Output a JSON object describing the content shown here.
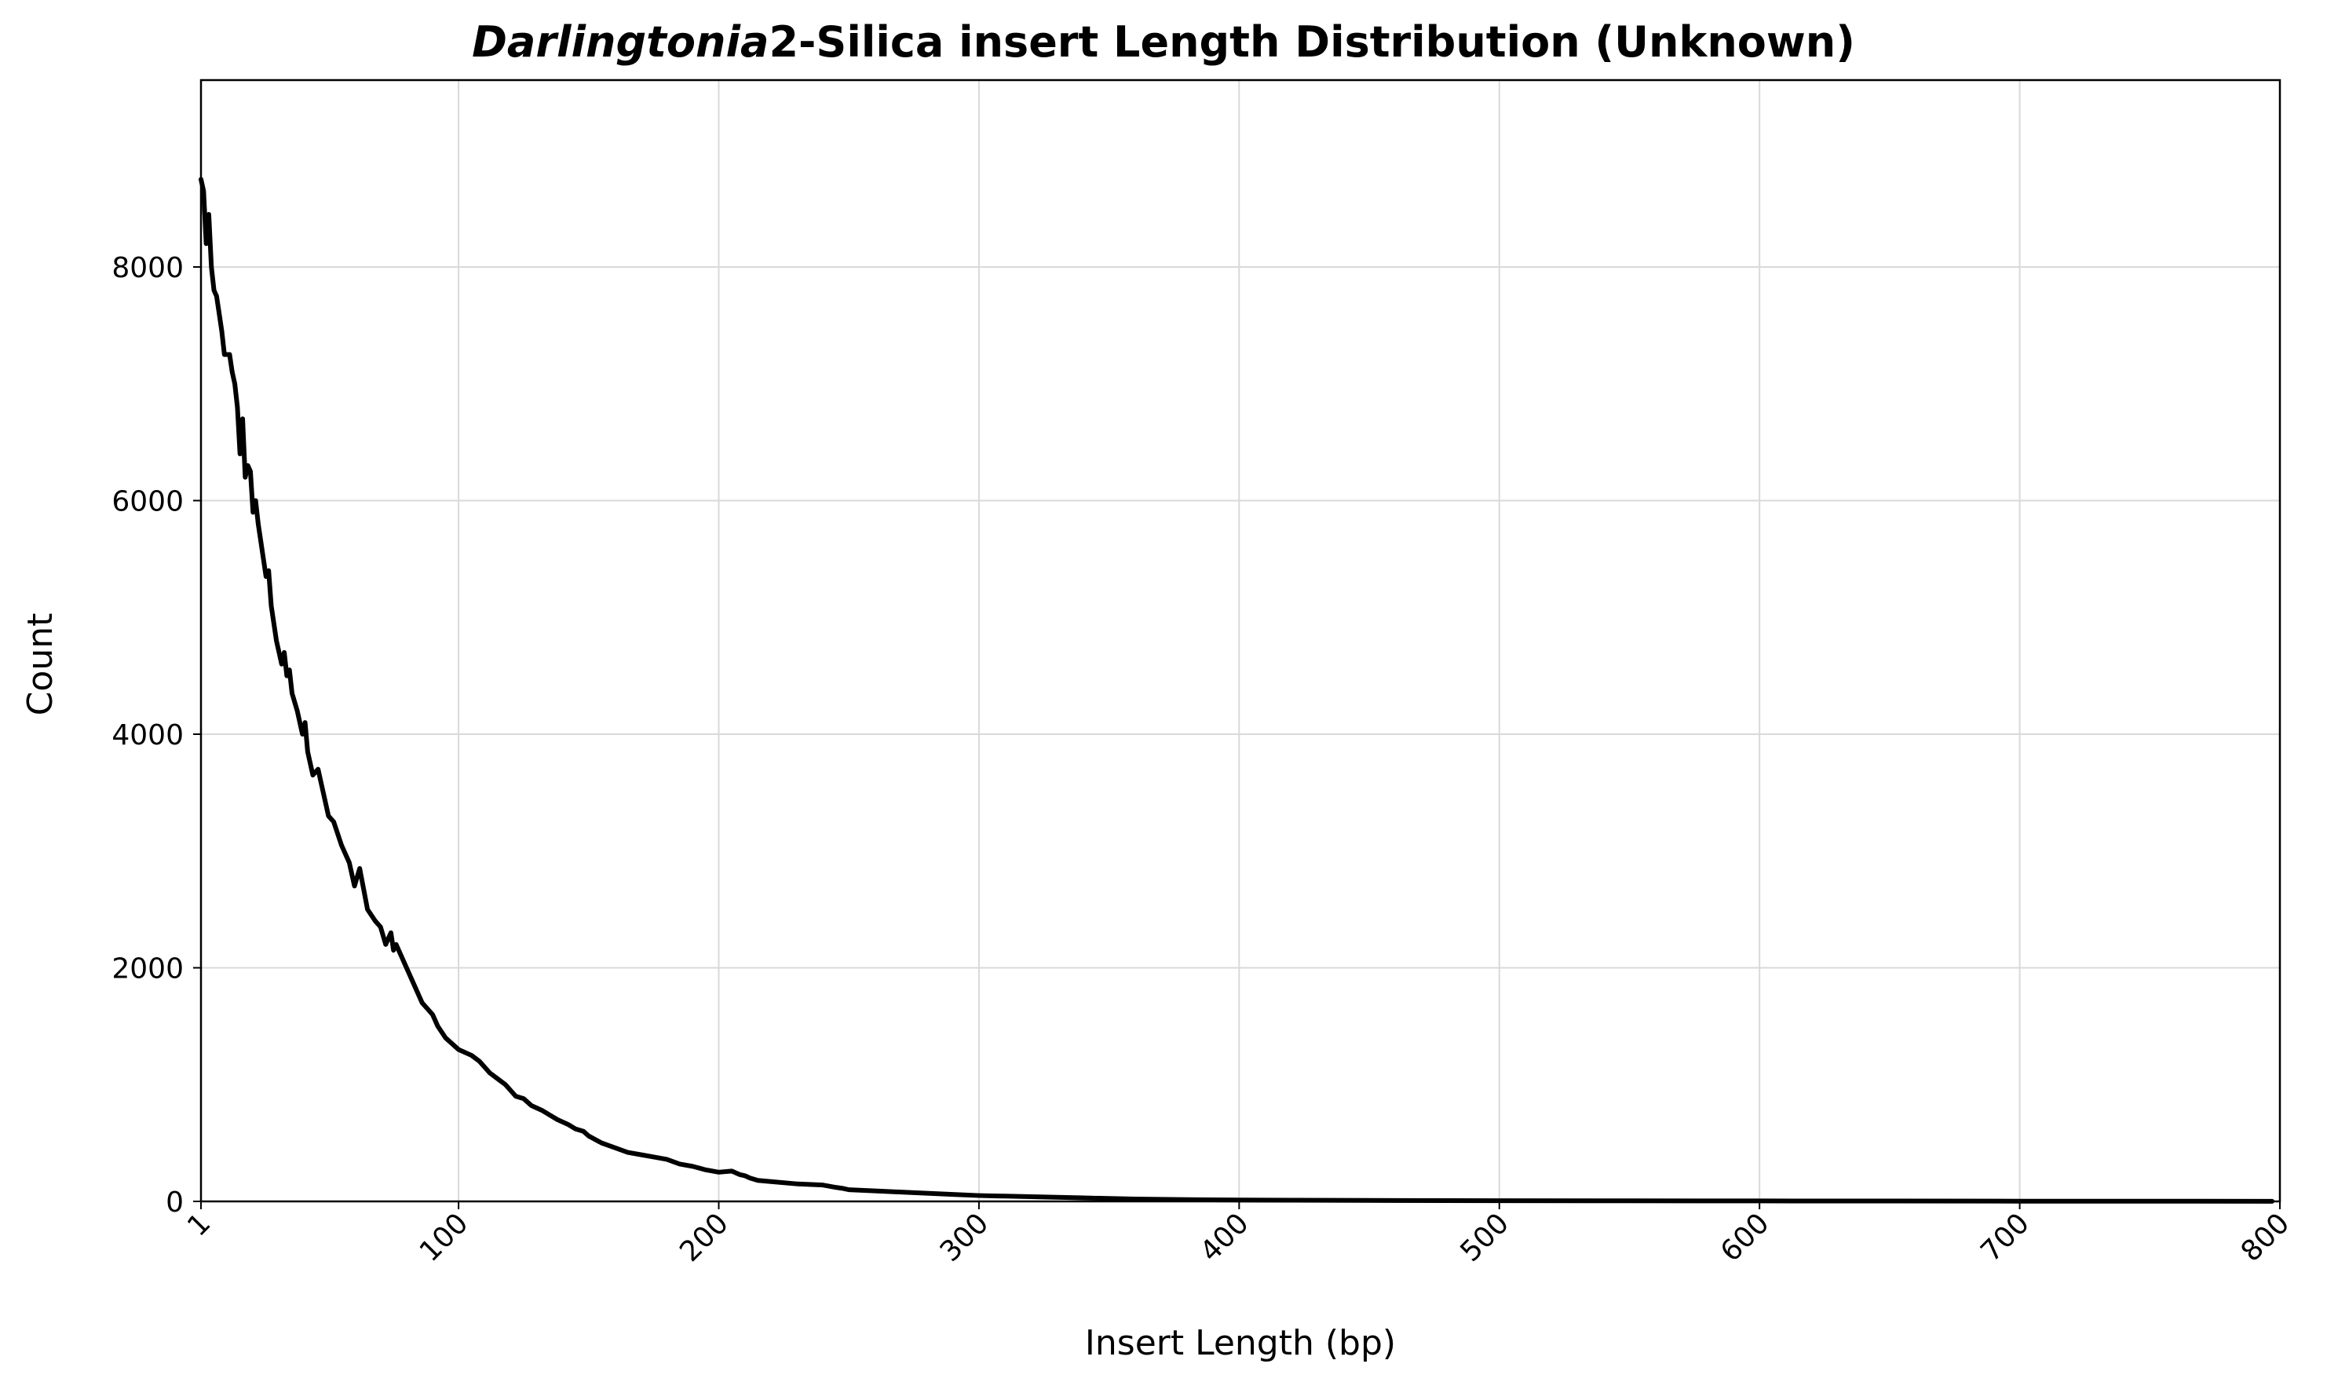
{
  "chart_data": {
    "type": "line",
    "title_italic": "Darlingtonia",
    "title_rest": "2-Silica insert Length Distribution (Unknown)",
    "xlabel": "Insert Length (bp)",
    "ylabel": "Count",
    "xlim": [
      1,
      800
    ],
    "ylim": [
      0,
      9600
    ],
    "x_ticks": [
      {
        "value": 1,
        "label": "1"
      },
      {
        "value": 100,
        "label": "100"
      },
      {
        "value": 200,
        "label": "200"
      },
      {
        "value": 300,
        "label": "300"
      },
      {
        "value": 400,
        "label": "400"
      },
      {
        "value": 500,
        "label": "500"
      },
      {
        "value": 600,
        "label": "600"
      },
      {
        "value": 700,
        "label": "700"
      },
      {
        "value": 800,
        "label": "800"
      }
    ],
    "y_ticks": [
      {
        "value": 0,
        "label": "0"
      },
      {
        "value": 2000,
        "label": "2000"
      },
      {
        "value": 4000,
        "label": "4000"
      },
      {
        "value": 6000,
        "label": "6000"
      },
      {
        "value": 8000,
        "label": "8000"
      }
    ],
    "grid": true,
    "line_color": "#000000",
    "series": [
      {
        "x": [
          1,
          2,
          3,
          4,
          5,
          6,
          7,
          8,
          9,
          10,
          12,
          13,
          14,
          15,
          16,
          17,
          18,
          19,
          20,
          21,
          22,
          23,
          24,
          25,
          26,
          27,
          28,
          30,
          32,
          33,
          34,
          35,
          36,
          38,
          40,
          41,
          42,
          44,
          46,
          47,
          48,
          50,
          52,
          55,
          58,
          60,
          62,
          65,
          68,
          70,
          72,
          74,
          75,
          76,
          78,
          80,
          82,
          84,
          85,
          86,
          88,
          90,
          92,
          95,
          100,
          105,
          108,
          110,
          112,
          115,
          118,
          120,
          122,
          125,
          128,
          130,
          132,
          135,
          138,
          140,
          142,
          145,
          148,
          150,
          155,
          160,
          165,
          170,
          175,
          180,
          185,
          190,
          195,
          200,
          205,
          208,
          210,
          212,
          215,
          220,
          230,
          240,
          245,
          248,
          250,
          260,
          270,
          280,
          290,
          300,
          310,
          320,
          330,
          340,
          350,
          360,
          370,
          380,
          400,
          420,
          450,
          500,
          550,
          600,
          650,
          700,
          750,
          797
        ],
        "y": [
          8750,
          8650,
          8200,
          8450,
          8000,
          7800,
          7750,
          7600,
          7450,
          7250,
          7250,
          7100,
          7000,
          6800,
          6400,
          6700,
          6200,
          6300,
          6250,
          5900,
          6000,
          5800,
          5650,
          5500,
          5350,
          5400,
          5100,
          4800,
          4600,
          4700,
          4500,
          4550,
          4350,
          4200,
          4000,
          4100,
          3850,
          3650,
          3700,
          3600,
          3500,
          3300,
          3250,
          3050,
          2900,
          2700,
          2850,
          2500,
          2400,
          2350,
          2200,
          2300,
          2150,
          2200,
          2100,
          2000,
          1900,
          1800,
          1750,
          1700,
          1650,
          1600,
          1500,
          1400,
          1300,
          1250,
          1200,
          1150,
          1100,
          1050,
          1000,
          950,
          900,
          880,
          820,
          800,
          780,
          740,
          700,
          680,
          660,
          620,
          600,
          560,
          500,
          460,
          420,
          400,
          380,
          360,
          320,
          300,
          270,
          250,
          260,
          230,
          220,
          200,
          180,
          170,
          150,
          140,
          120,
          110,
          100,
          90,
          80,
          70,
          60,
          50,
          45,
          40,
          35,
          30,
          25,
          20,
          18,
          15,
          12,
          10,
          8,
          6,
          5,
          4,
          3,
          2,
          2,
          1
        ]
      }
    ]
  }
}
